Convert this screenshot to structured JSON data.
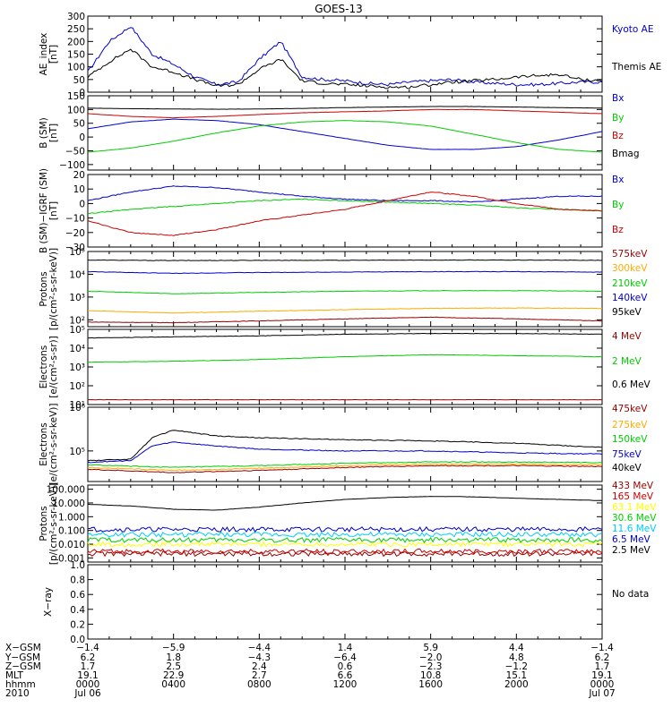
{
  "title": "GOES-13",
  "colors": {
    "black": "#000000",
    "blue": "#0000cc",
    "green": "#00cc00",
    "red": "#cc0000",
    "darkred": "#990000",
    "orange": "#ffaa00",
    "cyan": "#00ccff",
    "yellow": "#ffff00",
    "purple": "#6600aa"
  },
  "chart_data": [
    {
      "type": "line",
      "ylabel": "AE_index\n[nT]",
      "ylim": [
        0,
        300
      ],
      "scale": "linear",
      "yticks": [
        0,
        50,
        100,
        150,
        200,
        250,
        300
      ],
      "ytick_labels": [
        "0",
        "50",
        "100",
        "150",
        "200",
        "250",
        "300"
      ],
      "series": [
        {
          "name": "Kyoto AE",
          "color": "#0000cc",
          "x": [
            0,
            1,
            2,
            3,
            4,
            5,
            6,
            7,
            8,
            9,
            10,
            11,
            12,
            13,
            14,
            15,
            16,
            17,
            18,
            19,
            20,
            21,
            22,
            23,
            24
          ],
          "values": [
            80,
            200,
            260,
            150,
            110,
            60,
            30,
            40,
            130,
            200,
            60,
            50,
            45,
            35,
            30,
            40,
            45,
            50,
            40,
            35,
            30,
            30,
            35,
            40,
            40
          ]
        },
        {
          "name": "Themis AE",
          "color": "#000000",
          "x": [
            0,
            1,
            2,
            3,
            4,
            5,
            6,
            7,
            8,
            9,
            10,
            11,
            12,
            13,
            14,
            15,
            16,
            17,
            18,
            19,
            20,
            21,
            22,
            23,
            24
          ],
          "values": [
            60,
            120,
            170,
            100,
            80,
            50,
            25,
            30,
            90,
            130,
            45,
            35,
            30,
            25,
            20,
            20,
            30,
            40,
            45,
            50,
            60,
            65,
            70,
            50,
            45
          ]
        }
      ]
    },
    {
      "type": "line",
      "ylabel": "B (SM)\n[nT]",
      "ylim": [
        -120,
        150
      ],
      "scale": "linear",
      "yticks": [
        -100,
        -50,
        0,
        50,
        100,
        150
      ],
      "ytick_labels": [
        "−100",
        "−50",
        "0",
        "50",
        "100",
        "150"
      ],
      "series": [
        {
          "name": "Bx",
          "color": "#0000cc",
          "x": [
            0,
            2,
            4,
            6,
            8,
            10,
            12,
            14,
            16,
            18,
            20,
            22,
            24
          ],
          "values": [
            30,
            55,
            65,
            60,
            45,
            20,
            -5,
            -30,
            -45,
            -45,
            -35,
            -10,
            20
          ]
        },
        {
          "name": "By",
          "color": "#00cc00",
          "x": [
            0,
            2,
            4,
            6,
            8,
            10,
            12,
            14,
            16,
            18,
            20,
            22,
            24
          ],
          "values": [
            -55,
            -40,
            -15,
            15,
            40,
            55,
            60,
            55,
            40,
            10,
            -20,
            -45,
            -55
          ]
        },
        {
          "name": "Bz",
          "color": "#cc0000",
          "x": [
            0,
            2,
            4,
            6,
            8,
            10,
            12,
            14,
            16,
            18,
            20,
            22,
            24
          ],
          "values": [
            85,
            75,
            70,
            75,
            82,
            88,
            92,
            95,
            100,
            100,
            95,
            90,
            85
          ]
        },
        {
          "name": "Bmag",
          "color": "#000000",
          "x": [
            0,
            2,
            4,
            6,
            8,
            10,
            12,
            14,
            16,
            18,
            20,
            22,
            24
          ],
          "values": [
            105,
            103,
            102,
            101,
            102,
            104,
            107,
            109,
            111,
            111,
            109,
            107,
            105
          ]
        }
      ]
    },
    {
      "type": "line",
      "ylabel": "B (SM)−IGRF (SM)\n[nT]",
      "ylim": [
        -30,
        20
      ],
      "scale": "linear",
      "yticks": [
        -30,
        -20,
        -10,
        0,
        10,
        20
      ],
      "ytick_labels": [
        "−30",
        "−20",
        "−10",
        "0",
        "10",
        "20"
      ],
      "series": [
        {
          "name": "Bx",
          "color": "#0000cc",
          "x": [
            0,
            2,
            4,
            6,
            8,
            10,
            12,
            14,
            16,
            18,
            20,
            22,
            24
          ],
          "values": [
            2,
            8,
            12,
            11,
            8,
            5,
            3,
            2,
            2,
            1,
            3,
            5,
            5
          ]
        },
        {
          "name": "By",
          "color": "#00cc00",
          "x": [
            0,
            2,
            4,
            6,
            8,
            10,
            12,
            14,
            16,
            18,
            20,
            22,
            24
          ],
          "values": [
            -7,
            -4,
            -2,
            0,
            2,
            3,
            2,
            1,
            0,
            -1,
            -3,
            -4,
            -5
          ]
        },
        {
          "name": "Bz",
          "color": "#cc0000",
          "x": [
            0,
            2,
            4,
            6,
            8,
            10,
            12,
            14,
            16,
            18,
            20,
            22,
            24
          ],
          "values": [
            -12,
            -20,
            -22,
            -18,
            -12,
            -8,
            -4,
            2,
            8,
            5,
            0,
            -4,
            -5
          ]
        }
      ]
    },
    {
      "type": "line",
      "ylabel": "Protons\n[p/(cm²-s-sr-keV)]",
      "ylim": [
        50,
        100000
      ],
      "scale": "log",
      "yticks": [
        100,
        1000,
        10000,
        100000
      ],
      "ytick_labels": [
        "10²",
        "10³",
        "10⁴",
        "10⁵"
      ],
      "series": [
        {
          "name": "575keV",
          "color": "#990000",
          "x": [
            0,
            4,
            8,
            12,
            16,
            20,
            24
          ],
          "values": [
            80,
            75,
            90,
            110,
            130,
            110,
            90
          ]
        },
        {
          "name": "300keV",
          "color": "#ffaa00",
          "x": [
            0,
            4,
            8,
            12,
            16,
            20,
            24
          ],
          "values": [
            250,
            200,
            240,
            280,
            320,
            330,
            320
          ]
        },
        {
          "name": "210keV",
          "color": "#00cc00",
          "x": [
            0,
            4,
            8,
            12,
            16,
            20,
            24
          ],
          "values": [
            1800,
            1400,
            1600,
            1800,
            1900,
            1900,
            1800
          ]
        },
        {
          "name": "140keV",
          "color": "#0000cc",
          "x": [
            0,
            4,
            8,
            12,
            16,
            20,
            24
          ],
          "values": [
            13000,
            11000,
            12000,
            12500,
            13000,
            13000,
            12500
          ]
        },
        {
          "name": "95keV",
          "color": "#000000",
          "x": [
            0,
            4,
            8,
            12,
            16,
            20,
            24
          ],
          "values": [
            42000,
            40000,
            41000,
            41000,
            42000,
            42000,
            41000
          ]
        }
      ]
    },
    {
      "type": "line",
      "ylabel": "Electrons\n[e/(cm²-s-sr)]",
      "ylim": [
        10,
        100000
      ],
      "scale": "log",
      "yticks": [
        10,
        100,
        1000,
        10000,
        100000
      ],
      "ytick_labels": [
        "10¹",
        "10²",
        "10³",
        "10⁴",
        "10⁵"
      ],
      "series": [
        {
          "name": "4 MeV",
          "color": "#990000",
          "x": [
            0,
            4,
            8,
            12,
            16,
            20,
            24
          ],
          "values": [
            18,
            18,
            18,
            18,
            18,
            18,
            18
          ]
        },
        {
          "name": "2 MeV",
          "color": "#00cc00",
          "x": [
            0,
            4,
            8,
            12,
            16,
            20,
            24
          ],
          "values": [
            1800,
            2000,
            2500,
            3500,
            4500,
            4000,
            3500
          ]
        },
        {
          "name": "0.6 MeV",
          "color": "#000000",
          "x": [
            0,
            4,
            8,
            12,
            16,
            20,
            24
          ],
          "values": [
            35000,
            40000,
            45000,
            55000,
            60000,
            60000,
            55000
          ]
        }
      ]
    },
    {
      "type": "line",
      "ylabel": "Electrons\n[e/(cm²-s-sr-keV)]",
      "ylim": [
        20000,
        1000000
      ],
      "scale": "log",
      "yticks": [
        100000,
        1000000
      ],
      "ytick_labels": [
        "10⁵",
        "10⁶"
      ],
      "series": [
        {
          "name": "475keV",
          "color": "#990000",
          "x": [
            0,
            4,
            8,
            12,
            16,
            20,
            24
          ],
          "values": [
            38000,
            32000,
            36000,
            42000,
            46000,
            46000,
            44000
          ]
        },
        {
          "name": "275keV",
          "color": "#ffaa00",
          "x": [
            0,
            4,
            8,
            12,
            16,
            20,
            24
          ],
          "values": [
            42000,
            36000,
            40000,
            46000,
            50000,
            50000,
            48000
          ]
        },
        {
          "name": "150keV",
          "color": "#00cc00",
          "x": [
            0,
            4,
            8,
            12,
            16,
            20,
            24
          ],
          "values": [
            48000,
            42000,
            46000,
            52000,
            56000,
            56000,
            54000
          ]
        },
        {
          "name": "75keV",
          "color": "#0000cc",
          "x": [
            0,
            2,
            3,
            4,
            6,
            8,
            12,
            16,
            20,
            24
          ],
          "values": [
            55000,
            60000,
            130000,
            160000,
            130000,
            110000,
            100000,
            100000,
            90000,
            85000
          ]
        },
        {
          "name": "40keV",
          "color": "#000000",
          "x": [
            0,
            2,
            3,
            4,
            6,
            8,
            12,
            16,
            20,
            24
          ],
          "values": [
            60000,
            65000,
            200000,
            300000,
            220000,
            200000,
            180000,
            170000,
            150000,
            120000
          ]
        }
      ]
    },
    {
      "type": "line",
      "ylabel": "Protons\n[p/(cm²-s-sr-keV)]",
      "ylim": [
        0.0005,
        200
      ],
      "scale": "log",
      "yticks": [
        0.001,
        0.01,
        0.1,
        1,
        10,
        100
      ],
      "ytick_labels": [
        "0.001",
        "0.010",
        "0.100",
        "1.000",
        "10.000",
        "100.000"
      ],
      "series": [
        {
          "name": "433 MeV",
          "color": "#990000",
          "x": [
            0,
            4,
            8,
            12,
            16,
            20,
            24
          ],
          "values": [
            0.002,
            0.002,
            0.002,
            0.002,
            0.002,
            0.002,
            0.002
          ]
        },
        {
          "name": "165 MeV",
          "color": "#cc0000",
          "x": [
            0,
            4,
            8,
            12,
            16,
            20,
            24
          ],
          "values": [
            0.003,
            0.003,
            0.003,
            0.003,
            0.003,
            0.003,
            0.003
          ]
        },
        {
          "name": "63.1 MeV",
          "color": "#ffff00",
          "x": [
            0,
            4,
            8,
            12,
            16,
            20,
            24
          ],
          "values": [
            0.01,
            0.01,
            0.01,
            0.01,
            0.01,
            0.01,
            0.01
          ]
        },
        {
          "name": "30.6 MeV",
          "color": "#00cc00",
          "x": [
            0,
            4,
            8,
            12,
            16,
            20,
            24
          ],
          "values": [
            0.02,
            0.02,
            0.02,
            0.02,
            0.02,
            0.02,
            0.02
          ]
        },
        {
          "name": "11.6 MeV",
          "color": "#00ccff",
          "x": [
            0,
            4,
            8,
            12,
            16,
            20,
            24
          ],
          "values": [
            0.05,
            0.05,
            0.05,
            0.05,
            0.05,
            0.05,
            0.05
          ]
        },
        {
          "name": "6.5 MeV",
          "color": "#0000cc",
          "x": [
            0,
            4,
            8,
            12,
            16,
            20,
            24
          ],
          "values": [
            0.12,
            0.12,
            0.12,
            0.12,
            0.12,
            0.12,
            0.12
          ]
        },
        {
          "name": "2.5 MeV",
          "color": "#000000",
          "x": [
            0,
            2,
            4,
            6,
            8,
            10,
            12,
            14,
            16,
            18,
            20,
            22,
            24
          ],
          "values": [
            8,
            6,
            3.5,
            3,
            5,
            10,
            18,
            25,
            30,
            28,
            22,
            18,
            15
          ]
        }
      ]
    },
    {
      "type": "line",
      "ylabel": "X−ray",
      "ylim": [
        0,
        1
      ],
      "scale": "linear",
      "yticks": [
        0,
        0.2,
        0.4,
        0.6,
        0.8,
        1.0
      ],
      "ytick_labels": [
        "0.0",
        "0.2",
        "0.4",
        "0.6",
        "0.8",
        "1.0"
      ],
      "series": [],
      "nodata": "No data"
    }
  ],
  "xaxis": {
    "row_labels": [
      "X−GSM",
      "Y−GSM",
      "Z−GSM",
      "MLT",
      "hhmm",
      "2010"
    ],
    "columns": [
      {
        "x": 0,
        "vals": [
          "−1.4",
          "6.2",
          "1.7",
          "19.1",
          "0000",
          "Jul 06"
        ]
      },
      {
        "x": 4,
        "vals": [
          "−5.9",
          "1.8",
          "2.5",
          "22.9",
          "0400",
          ""
        ]
      },
      {
        "x": 8,
        "vals": [
          "−4.4",
          "−4.3",
          "2.4",
          "2.7",
          "0800",
          ""
        ]
      },
      {
        "x": 12,
        "vals": [
          "1.4",
          "−6.4",
          "0.6",
          "6.6",
          "1200",
          ""
        ]
      },
      {
        "x": 16,
        "vals": [
          "5.9",
          "−2.0",
          "−2.3",
          "10.8",
          "1600",
          ""
        ]
      },
      {
        "x": 20,
        "vals": [
          "4.4",
          "4.8",
          "−1.2",
          "15.1",
          "2000",
          ""
        ]
      },
      {
        "x": 24,
        "vals": [
          "−1.4",
          "6.2",
          "1.7",
          "19.1",
          "0000",
          "Jul 07"
        ]
      }
    ]
  }
}
